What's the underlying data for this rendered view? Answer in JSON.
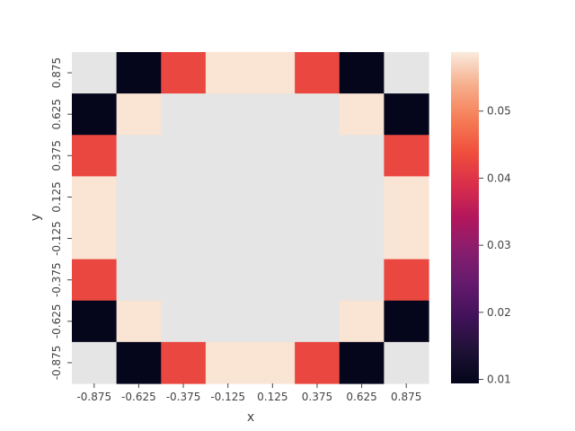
{
  "chart_data": {
    "type": "heatmap",
    "title": "",
    "xlabel": "x",
    "ylabel": "y",
    "x_ticks": [
      "-0.875",
      "-0.625",
      "-0.375",
      "-0.125",
      "0.125",
      "0.375",
      "0.625",
      "0.875"
    ],
    "y_ticks": [
      "0.875",
      "0.625",
      "0.375",
      "0.125",
      "-0.125",
      "-0.375",
      "-0.625",
      "-0.875"
    ],
    "values": [
      [
        null,
        0.0097,
        0.0427,
        0.0582,
        0.0582,
        0.0427,
        0.0097,
        null
      ],
      [
        0.0097,
        0.0582,
        null,
        null,
        null,
        null,
        0.0582,
        0.0097
      ],
      [
        0.0427,
        null,
        null,
        null,
        null,
        null,
        null,
        0.0427
      ],
      [
        0.0582,
        null,
        null,
        null,
        null,
        null,
        null,
        0.0582
      ],
      [
        0.0582,
        null,
        null,
        null,
        null,
        null,
        null,
        0.0582
      ],
      [
        0.0427,
        null,
        null,
        null,
        null,
        null,
        null,
        0.0427
      ],
      [
        0.0097,
        0.0582,
        null,
        null,
        null,
        null,
        0.0582,
        0.0097
      ],
      [
        null,
        0.0097,
        0.0427,
        0.0582,
        0.0582,
        0.0427,
        0.0097,
        null
      ]
    ],
    "missing_color": "#e5e5e5",
    "colormap": "rocket",
    "colorbar": {
      "min": 0.0094,
      "max": 0.0588,
      "ticks": [
        0.01,
        0.02,
        0.03,
        0.04,
        0.05
      ],
      "tick_labels": [
        "0.01",
        "0.02",
        "0.03",
        "0.04",
        "0.05"
      ]
    }
  }
}
